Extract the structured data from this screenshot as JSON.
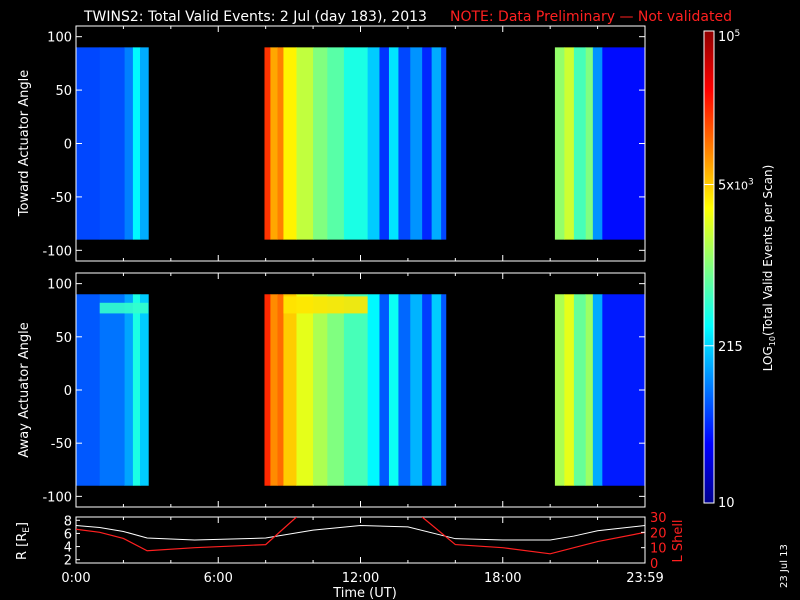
{
  "header": {
    "title": "TWINS2: Total Valid Events:  2 Jul (day 183), 2013",
    "note": "NOTE: Data Preliminary — Not validated"
  },
  "stamp": "23 Jul 13",
  "colors": {
    "note": "#ff2020",
    "r_line": "#ffffff",
    "lshell_line": "#ff2020",
    "background": "#000000"
  },
  "chart_data": [
    {
      "type": "heatmap",
      "panel": "toward",
      "ylabel": "Toward Actuator Angle",
      "ylim": [
        -110,
        110
      ],
      "yticks": [
        100,
        50,
        0,
        -50,
        -100
      ],
      "xlim_hours": [
        0,
        24
      ],
      "data_angle_range": [
        -90,
        90
      ],
      "colorscale": "log10",
      "active_intervals": [
        {
          "start": 0.0,
          "end": 1.0,
          "value": 60
        },
        {
          "start": 1.0,
          "end": 2.05,
          "value": 65
        },
        {
          "start": 2.05,
          "end": 2.4,
          "value": 100
        },
        {
          "start": 2.4,
          "end": 2.7,
          "value": 300
        },
        {
          "start": 2.7,
          "end": 3.05,
          "value": 150
        },
        {
          "start": 7.95,
          "end": 8.2,
          "value": 20000
        },
        {
          "start": 8.2,
          "end": 8.5,
          "value": 7000
        },
        {
          "start": 8.5,
          "end": 8.75,
          "value": 10000
        },
        {
          "start": 8.75,
          "end": 9.3,
          "value": 3500
        },
        {
          "start": 9.3,
          "end": 10.0,
          "value": 1800
        },
        {
          "start": 10.0,
          "end": 10.6,
          "value": 1000
        },
        {
          "start": 10.6,
          "end": 11.3,
          "value": 700
        },
        {
          "start": 11.3,
          "end": 12.3,
          "value": 400
        },
        {
          "start": 12.3,
          "end": 12.8,
          "value": 200
        },
        {
          "start": 12.8,
          "end": 13.2,
          "value": 50
        },
        {
          "start": 13.2,
          "end": 13.6,
          "value": 250
        },
        {
          "start": 13.6,
          "end": 14.1,
          "value": 60
        },
        {
          "start": 14.1,
          "end": 14.6,
          "value": 120
        },
        {
          "start": 14.6,
          "end": 15.0,
          "value": 45
        },
        {
          "start": 15.0,
          "end": 15.4,
          "value": 150
        },
        {
          "start": 15.4,
          "end": 15.6,
          "value": 60
        },
        {
          "start": 20.2,
          "end": 20.6,
          "value": 1200
        },
        {
          "start": 20.6,
          "end": 21.0,
          "value": 2000
        },
        {
          "start": 21.0,
          "end": 21.5,
          "value": 600
        },
        {
          "start": 21.5,
          "end": 21.8,
          "value": 1000
        },
        {
          "start": 21.8,
          "end": 22.2,
          "value": 120
        },
        {
          "start": 22.2,
          "end": 24.0,
          "value": 35
        }
      ]
    },
    {
      "type": "heatmap",
      "panel": "away",
      "ylabel": "Away Actuator Angle",
      "ylim": [
        -110,
        110
      ],
      "yticks": [
        100,
        50,
        0,
        -50,
        -100
      ],
      "xlim_hours": [
        0,
        24
      ],
      "data_angle_range": [
        -90,
        90
      ],
      "colorscale": "log10",
      "active_intervals": [
        {
          "start": 0.0,
          "end": 1.0,
          "value": 70
        },
        {
          "start": 1.0,
          "end": 2.05,
          "value": 90
        },
        {
          "start": 2.05,
          "end": 2.4,
          "value": 140
        },
        {
          "start": 2.4,
          "end": 2.7,
          "value": 400
        },
        {
          "start": 2.7,
          "end": 3.05,
          "value": 200
        },
        {
          "start": 7.95,
          "end": 8.2,
          "value": 22000
        },
        {
          "start": 8.2,
          "end": 8.5,
          "value": 9000
        },
        {
          "start": 8.5,
          "end": 8.75,
          "value": 12000
        },
        {
          "start": 8.75,
          "end": 9.3,
          "value": 5000
        },
        {
          "start": 9.3,
          "end": 10.0,
          "value": 2500
        },
        {
          "start": 10.0,
          "end": 10.6,
          "value": 1500
        },
        {
          "start": 10.6,
          "end": 11.3,
          "value": 1000
        },
        {
          "start": 11.3,
          "end": 12.3,
          "value": 600
        },
        {
          "start": 12.3,
          "end": 12.8,
          "value": 300
        },
        {
          "start": 12.8,
          "end": 13.2,
          "value": 70
        },
        {
          "start": 13.2,
          "end": 13.6,
          "value": 350
        },
        {
          "start": 13.6,
          "end": 14.1,
          "value": 80
        },
        {
          "start": 14.1,
          "end": 14.6,
          "value": 160
        },
        {
          "start": 14.6,
          "end": 15.0,
          "value": 55
        },
        {
          "start": 15.0,
          "end": 15.4,
          "value": 200
        },
        {
          "start": 15.4,
          "end": 15.6,
          "value": 70
        },
        {
          "start": 20.2,
          "end": 20.6,
          "value": 1500
        },
        {
          "start": 20.6,
          "end": 21.0,
          "value": 2500
        },
        {
          "start": 21.0,
          "end": 21.5,
          "value": 800
        },
        {
          "start": 21.5,
          "end": 21.8,
          "value": 1300
        },
        {
          "start": 21.8,
          "end": 22.2,
          "value": 150
        },
        {
          "start": 22.2,
          "end": 24.0,
          "value": 40
        }
      ],
      "enhancements": [
        {
          "start": 1.0,
          "end": 3.05,
          "angle_min": 72,
          "angle_max": 82,
          "value": 500
        },
        {
          "start": 8.75,
          "end": 12.3,
          "angle_min": 72,
          "angle_max": 88,
          "value": 4000
        }
      ]
    },
    {
      "type": "line",
      "panel": "ephemeris",
      "xlabel": "Time (UT)",
      "xticks": [
        "0:00",
        "6:00",
        "12:00",
        "18:00",
        "23:59"
      ],
      "xtick_hours": [
        0,
        6,
        12,
        18,
        24
      ],
      "xlim_hours": [
        0,
        24
      ],
      "left_axis": {
        "label": "R [R",
        "label_sub": "E",
        "label_end": "]",
        "ylim": [
          1.5,
          8.5
        ],
        "ticks": [
          2,
          4,
          6,
          8
        ]
      },
      "right_axis": {
        "label": "L Shell",
        "ylim": [
          0,
          30
        ],
        "ticks": [
          0,
          10,
          20,
          30
        ]
      },
      "series": [
        {
          "axis": "left",
          "x": [
            0,
            1,
            2,
            3,
            5,
            8,
            10,
            12,
            14,
            16,
            18,
            20,
            21,
            22,
            24
          ],
          "y": [
            7.2,
            6.9,
            6.3,
            5.3,
            5.0,
            5.3,
            6.5,
            7.2,
            7.0,
            5.2,
            5.0,
            5.0,
            5.6,
            6.4,
            7.2
          ]
        },
        {
          "axis": "right",
          "x": [
            0,
            1,
            2,
            3,
            5,
            8,
            9.3
          ],
          "y": [
            22,
            20,
            16,
            8,
            10,
            12,
            30
          ],
          "break_after": true,
          "x2": [
            14.6,
            16,
            18,
            20,
            21,
            22,
            24
          ],
          "y2": [
            30,
            12,
            10,
            6,
            10,
            14,
            20
          ]
        }
      ]
    }
  ],
  "colorbar": {
    "label": "LOG",
    "label_sub": "10",
    "label_rest": "(Total Valid  Events per Scan)",
    "min": 10,
    "max": 100000,
    "tick_labels": [
      {
        "value": 10,
        "text": "10"
      },
      {
        "value": 215,
        "text": "215"
      },
      {
        "value": 5000,
        "text": "5x",
        "base": "10",
        "exp": "3"
      },
      {
        "value": 100000,
        "base": "10",
        "exp": "5"
      }
    ]
  }
}
